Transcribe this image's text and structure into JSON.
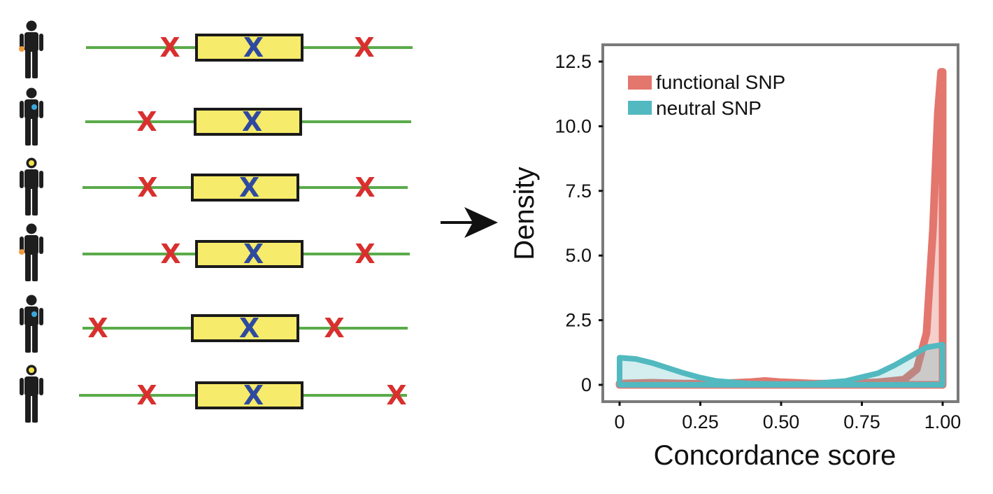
{
  "colors": {
    "person": "#1e1e1e",
    "line": "#5aab4a",
    "gene_fill": "#f6eb6a",
    "gene_border": "#1a1a1a",
    "flank_snp": "#d8302e",
    "gene_snp": "#2e4aa0",
    "functional": "#e3766d",
    "neutral": "#52b9c0",
    "frame": "#7a7a7a"
  },
  "marker_glyph": "X",
  "people": [
    {
      "dot_color": "#f09a3e",
      "dot_location": "hand"
    },
    {
      "dot_color": "#3aa7dd",
      "dot_location": "chest"
    },
    {
      "dot_color": "#f2e24b",
      "dot_location": "head"
    },
    {
      "dot_color": "#f09a3e",
      "dot_location": "hand"
    },
    {
      "dot_color": "#3aa7dd",
      "dot_location": "chest"
    },
    {
      "dot_color": "#f2e24b",
      "dot_location": "head"
    }
  ],
  "arrow_icon": "arrow-right-icon",
  "chart_data": {
    "type": "area",
    "xlabel": "Concordance score",
    "ylabel": "Density",
    "xlim": [
      0,
      1.0
    ],
    "ylim": [
      0,
      12.5
    ],
    "xticks": [
      0,
      0.25,
      0.5,
      0.75,
      1.0
    ],
    "xtick_labels": [
      "0",
      "0.25",
      "0.50",
      "0.75",
      "1.00"
    ],
    "yticks": [
      0,
      2.5,
      5.0,
      7.5,
      10.0,
      12.5
    ],
    "ytick_labels": [
      "0",
      "2.5",
      "5.0",
      "7.5",
      "10.0",
      "12.5"
    ],
    "legend_position": "top-left",
    "grid": false,
    "series": [
      {
        "name": "functional SNP",
        "color": "#e3766d",
        "x": [
          0,
          0.1,
          0.2,
          0.3,
          0.4,
          0.45,
          0.5,
          0.6,
          0.7,
          0.8,
          0.88,
          0.92,
          0.95,
          0.97,
          0.985,
          0.995,
          1.0
        ],
        "y": [
          0.05,
          0.08,
          0.05,
          0.05,
          0.1,
          0.15,
          0.1,
          0.05,
          0.05,
          0.1,
          0.2,
          0.6,
          2.0,
          6.0,
          10.5,
          12.1,
          12.1
        ]
      },
      {
        "name": "neutral SNP",
        "color": "#52b9c0",
        "x": [
          0,
          0.05,
          0.1,
          0.15,
          0.2,
          0.25,
          0.3,
          0.4,
          0.5,
          0.6,
          0.7,
          0.8,
          0.85,
          0.9,
          0.95,
          1.0
        ],
        "y": [
          1.05,
          1.0,
          0.85,
          0.65,
          0.45,
          0.28,
          0.15,
          0.05,
          0.03,
          0.05,
          0.15,
          0.45,
          0.75,
          1.1,
          1.45,
          1.55
        ]
      }
    ]
  }
}
